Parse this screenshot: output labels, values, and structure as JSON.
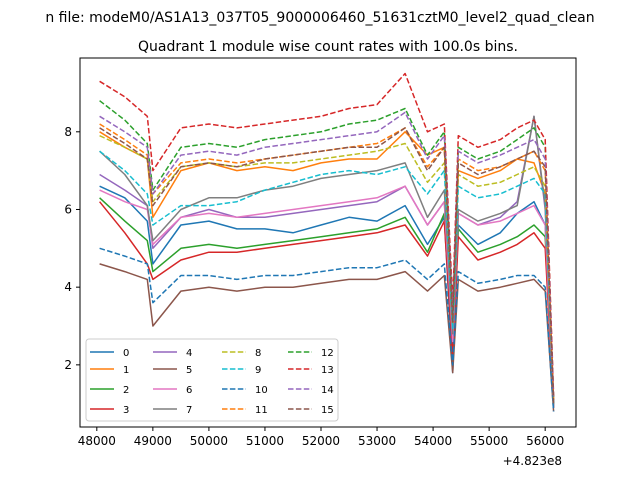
{
  "figure": {
    "suptitle": "n file: modeM0/AS1A13_037T05_9000006460_51631cztM0_level2_quad_clean",
    "title": "Quadrant 1 module wise count rates with 100.0s bins.",
    "x_offset_label": "+4.823e8"
  },
  "chart_data": {
    "type": "line",
    "title": "Quadrant 1 module wise count rates with 100.0s bins.",
    "xlabel": "",
    "ylabel": "",
    "x_offset": 482300000,
    "xlim": [
      47700,
      56550
    ],
    "ylim": [
      0.4,
      9.9
    ],
    "xticks": [
      48000,
      49000,
      50000,
      51000,
      52000,
      53000,
      54000,
      55000,
      56000
    ],
    "yticks": [
      2,
      4,
      6,
      8
    ],
    "grid": false,
    "legend_placement": "lower-left",
    "legend_columns": 4,
    "colors": [
      "#1f77b4",
      "#ff7f0e",
      "#2ca02c",
      "#d62728",
      "#9467bd",
      "#8c564b",
      "#e377c2",
      "#7f7f7f",
      "#bcbd22",
      "#17becf",
      "#1f77b4",
      "#ff7f0e",
      "#2ca02c",
      "#d62728",
      "#9467bd",
      "#8c564b"
    ],
    "series": [
      {
        "name": "0",
        "style": "solid",
        "x": [
          48050,
          48500,
          48900,
          49000,
          49500,
          50000,
          50500,
          51000,
          51500,
          52000,
          52500,
          53000,
          53500,
          53900,
          54200,
          54350,
          54450,
          54800,
          55200,
          55500,
          55800,
          56000,
          56150
        ],
        "values": [
          6.6,
          6.3,
          5.7,
          4.6,
          5.6,
          5.7,
          5.5,
          5.5,
          5.4,
          5.6,
          5.8,
          5.7,
          6.1,
          5.1,
          5.8,
          1.8,
          5.6,
          5.1,
          5.4,
          5.9,
          6.2,
          5.6,
          0.9
        ]
      },
      {
        "name": "1",
        "style": "solid",
        "x": [
          48050,
          48500,
          48900,
          49000,
          49500,
          50000,
          50500,
          51000,
          51500,
          52000,
          52500,
          53000,
          53500,
          53900,
          54200,
          54350,
          54450,
          54800,
          55200,
          55500,
          55800,
          56000,
          56150
        ],
        "values": [
          8.0,
          7.6,
          7.3,
          5.8,
          7.0,
          7.2,
          7.0,
          7.1,
          7.0,
          7.2,
          7.3,
          7.3,
          8.0,
          7.4,
          7.6,
          3.0,
          7.0,
          6.8,
          7.0,
          7.3,
          7.2,
          6.4,
          1.0
        ]
      },
      {
        "name": "2",
        "style": "solid",
        "x": [
          48050,
          48500,
          48900,
          49000,
          49500,
          50000,
          50500,
          51000,
          51500,
          52000,
          52500,
          53000,
          53500,
          53900,
          54200,
          54350,
          54450,
          54800,
          55200,
          55500,
          55800,
          56000,
          56150
        ],
        "values": [
          6.3,
          5.7,
          5.2,
          4.4,
          5.0,
          5.1,
          5.0,
          5.1,
          5.2,
          5.3,
          5.4,
          5.5,
          5.8,
          4.9,
          5.9,
          2.4,
          5.5,
          4.9,
          5.1,
          5.3,
          5.6,
          5.3,
          0.9
        ]
      },
      {
        "name": "3",
        "style": "solid",
        "x": [
          48050,
          48500,
          48900,
          49000,
          49500,
          50000,
          50500,
          51000,
          51500,
          52000,
          52500,
          53000,
          53500,
          53900,
          54200,
          54350,
          54450,
          54800,
          55200,
          55500,
          55800,
          56000,
          56150
        ],
        "values": [
          6.2,
          5.4,
          4.6,
          4.2,
          4.7,
          4.9,
          4.9,
          5.0,
          5.1,
          5.2,
          5.3,
          5.4,
          5.6,
          4.8,
          5.7,
          2.2,
          5.3,
          4.7,
          4.9,
          5.1,
          5.4,
          5.0,
          0.9
        ]
      },
      {
        "name": "4",
        "style": "solid",
        "x": [
          48050,
          48500,
          48900,
          49000,
          49500,
          50000,
          50500,
          51000,
          51500,
          52000,
          52500,
          53000,
          53500,
          53900,
          54200,
          54350,
          54450,
          54800,
          55200,
          55500,
          55800,
          56000,
          56150
        ],
        "values": [
          6.9,
          6.5,
          6.1,
          5.0,
          5.8,
          6.0,
          5.8,
          5.8,
          5.9,
          6.0,
          6.1,
          6.2,
          6.6,
          5.6,
          6.2,
          2.6,
          5.9,
          5.6,
          5.8,
          6.2,
          8.4,
          6.0,
          0.9
        ]
      },
      {
        "name": "5",
        "style": "solid",
        "x": [
          48050,
          48500,
          48900,
          49000,
          49500,
          50000,
          50500,
          51000,
          51500,
          52000,
          52500,
          53000,
          53500,
          53900,
          54200,
          54350,
          54450,
          54800,
          55200,
          55500,
          55800,
          56000,
          56150
        ],
        "values": [
          4.6,
          4.4,
          4.2,
          3.0,
          3.9,
          4.0,
          3.9,
          4.0,
          4.0,
          4.1,
          4.2,
          4.2,
          4.4,
          3.9,
          4.3,
          1.8,
          4.2,
          3.9,
          4.0,
          4.1,
          4.2,
          3.9,
          0.8
        ]
      },
      {
        "name": "6",
        "style": "solid",
        "x": [
          48050,
          48500,
          48900,
          49000,
          49500,
          50000,
          50500,
          51000,
          51500,
          52000,
          52500,
          53000,
          53500,
          53900,
          54200,
          54350,
          54450,
          54800,
          55200,
          55500,
          55800,
          56000,
          56150
        ],
        "values": [
          6.5,
          6.2,
          6.0,
          5.1,
          5.8,
          5.9,
          5.8,
          5.9,
          6.0,
          6.1,
          6.2,
          6.3,
          6.6,
          5.6,
          6.2,
          2.6,
          5.9,
          5.6,
          5.7,
          5.9,
          6.1,
          5.6,
          0.9
        ]
      },
      {
        "name": "7",
        "style": "solid",
        "x": [
          48050,
          48500,
          48900,
          49000,
          49500,
          50000,
          50500,
          51000,
          51500,
          52000,
          52500,
          53000,
          53500,
          53900,
          54200,
          54350,
          54450,
          54800,
          55200,
          55500,
          55800,
          56000,
          56150
        ],
        "values": [
          7.5,
          6.9,
          6.1,
          5.2,
          6.0,
          6.3,
          6.3,
          6.5,
          6.6,
          6.8,
          6.9,
          7.0,
          7.2,
          5.8,
          6.5,
          2.8,
          6.0,
          5.7,
          5.9,
          6.1,
          8.4,
          6.1,
          0.9
        ]
      },
      {
        "name": "8",
        "style": "dashed",
        "x": [
          48050,
          48500,
          48900,
          49000,
          49500,
          50000,
          50500,
          51000,
          51500,
          52000,
          52500,
          53000,
          53500,
          53900,
          54200,
          54350,
          54450,
          54800,
          55200,
          55500,
          55800,
          56000,
          56150
        ],
        "values": [
          7.9,
          7.6,
          7.3,
          6.2,
          7.1,
          7.2,
          7.1,
          7.2,
          7.2,
          7.3,
          7.4,
          7.5,
          7.7,
          6.7,
          7.2,
          3.0,
          6.9,
          6.6,
          6.7,
          6.9,
          7.1,
          6.6,
          1.0
        ]
      },
      {
        "name": "9",
        "style": "dashed",
        "x": [
          48050,
          48500,
          48900,
          49000,
          49500,
          50000,
          50500,
          51000,
          51500,
          52000,
          52500,
          53000,
          53500,
          53900,
          54200,
          54350,
          54450,
          54800,
          55200,
          55500,
          55800,
          56000,
          56150
        ],
        "values": [
          7.5,
          7.0,
          6.4,
          5.6,
          6.1,
          6.1,
          6.2,
          6.5,
          6.7,
          6.9,
          7.0,
          6.9,
          7.1,
          6.4,
          7.0,
          2.9,
          6.6,
          6.3,
          6.4,
          6.6,
          6.8,
          6.4,
          1.0
        ]
      },
      {
        "name": "10",
        "style": "dashed",
        "x": [
          48050,
          48500,
          48900,
          49000,
          49500,
          50000,
          50500,
          51000,
          51500,
          52000,
          52500,
          53000,
          53500,
          53900,
          54200,
          54350,
          54450,
          54800,
          55200,
          55500,
          55800,
          56000,
          56150
        ],
        "values": [
          5.0,
          4.8,
          4.6,
          3.6,
          4.3,
          4.3,
          4.2,
          4.3,
          4.3,
          4.4,
          4.5,
          4.5,
          4.7,
          4.2,
          4.6,
          2.0,
          4.4,
          4.1,
          4.2,
          4.3,
          4.3,
          4.0,
          0.8
        ]
      },
      {
        "name": "11",
        "style": "dashed",
        "x": [
          48050,
          48500,
          48900,
          49000,
          49500,
          50000,
          50500,
          51000,
          51500,
          52000,
          52500,
          53000,
          53500,
          53900,
          54200,
          54350,
          54450,
          54800,
          55200,
          55500,
          55800,
          56000,
          56150
        ],
        "values": [
          8.2,
          7.8,
          7.4,
          6.4,
          7.2,
          7.3,
          7.2,
          7.3,
          7.4,
          7.5,
          7.6,
          7.7,
          8.1,
          7.1,
          7.6,
          3.2,
          7.3,
          7.0,
          7.1,
          7.3,
          7.5,
          7.0,
          1.1
        ]
      },
      {
        "name": "12",
        "style": "dashed",
        "x": [
          48050,
          48500,
          48900,
          49000,
          49500,
          50000,
          50500,
          51000,
          51500,
          52000,
          52500,
          53000,
          53500,
          53900,
          54200,
          54350,
          54450,
          54800,
          55200,
          55500,
          55800,
          56000,
          56150
        ],
        "values": [
          8.8,
          8.3,
          7.7,
          6.5,
          7.6,
          7.7,
          7.6,
          7.8,
          7.9,
          8.0,
          8.2,
          8.3,
          8.6,
          7.4,
          8.0,
          3.3,
          7.6,
          7.3,
          7.5,
          7.8,
          8.1,
          7.6,
          1.1
        ]
      },
      {
        "name": "13",
        "style": "dashed",
        "x": [
          48050,
          48500,
          48900,
          49000,
          49500,
          50000,
          50500,
          51000,
          51500,
          52000,
          52500,
          53000,
          53500,
          53900,
          54200,
          54350,
          54450,
          54800,
          55200,
          55500,
          55800,
          56000,
          56150
        ],
        "values": [
          9.3,
          8.9,
          8.4,
          7.0,
          8.1,
          8.2,
          8.1,
          8.2,
          8.3,
          8.4,
          8.6,
          8.7,
          9.5,
          8.0,
          8.2,
          3.6,
          7.9,
          7.6,
          7.8,
          8.1,
          8.3,
          7.8,
          1.2
        ]
      },
      {
        "name": "14",
        "style": "dashed",
        "x": [
          48050,
          48500,
          48900,
          49000,
          49500,
          50000,
          50500,
          51000,
          51500,
          52000,
          52500,
          53000,
          53500,
          53900,
          54200,
          54350,
          54450,
          54800,
          55200,
          55500,
          55800,
          56000,
          56150
        ],
        "values": [
          8.4,
          8.0,
          7.6,
          6.4,
          7.4,
          7.5,
          7.4,
          7.6,
          7.7,
          7.8,
          7.9,
          8.0,
          8.5,
          7.3,
          7.9,
          3.3,
          7.5,
          7.2,
          7.4,
          7.6,
          7.8,
          7.3,
          1.1
        ]
      },
      {
        "name": "15",
        "style": "dashed",
        "x": [
          48050,
          48500,
          48900,
          49000,
          49500,
          50000,
          50500,
          51000,
          51500,
          52000,
          52500,
          53000,
          53500,
          53900,
          54200,
          54350,
          54450,
          54800,
          55200,
          55500,
          55800,
          56000,
          56150
        ],
        "values": [
          8.1,
          7.7,
          7.3,
          6.1,
          7.1,
          7.2,
          7.1,
          7.3,
          7.4,
          7.5,
          7.6,
          7.6,
          8.1,
          7.0,
          7.6,
          3.1,
          7.2,
          6.9,
          7.1,
          7.3,
          7.5,
          7.1,
          1.0
        ]
      }
    ]
  }
}
